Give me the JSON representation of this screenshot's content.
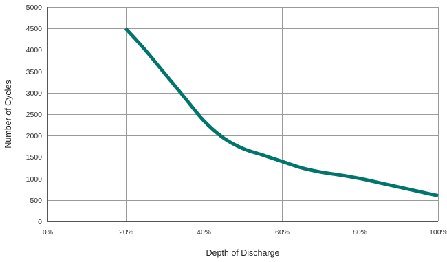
{
  "chart_data": {
    "type": "line",
    "title": "",
    "xlabel": "Depth of Discharge",
    "ylabel": "Number of Cycles",
    "xlim": [
      0,
      100
    ],
    "ylim": [
      0,
      5000
    ],
    "x_ticks": [
      0,
      20,
      40,
      60,
      80,
      100
    ],
    "x_tick_labels": [
      "0%",
      "20%",
      "40%",
      "60%",
      "80%",
      "100%"
    ],
    "y_ticks": [
      0,
      500,
      1000,
      1500,
      2000,
      2500,
      3000,
      3500,
      4000,
      4500,
      5000
    ],
    "y_tick_labels": [
      "0",
      "500",
      "1000",
      "1500",
      "2000",
      "2500",
      "3000",
      "3500",
      "4000",
      "4500",
      "5000"
    ],
    "grid": true,
    "legend": "none",
    "series": [
      {
        "color": "#00756b",
        "points": [
          {
            "x": 20,
            "y": 4500
          },
          {
            "x": 25,
            "y": 4000
          },
          {
            "x": 30,
            "y": 3450
          },
          {
            "x": 35,
            "y": 2900
          },
          {
            "x": 40,
            "y": 2350
          },
          {
            "x": 45,
            "y": 1950
          },
          {
            "x": 50,
            "y": 1700
          },
          {
            "x": 55,
            "y": 1550
          },
          {
            "x": 60,
            "y": 1400
          },
          {
            "x": 65,
            "y": 1250
          },
          {
            "x": 70,
            "y": 1150
          },
          {
            "x": 75,
            "y": 1080
          },
          {
            "x": 80,
            "y": 1000
          },
          {
            "x": 85,
            "y": 900
          },
          {
            "x": 90,
            "y": 800
          },
          {
            "x": 95,
            "y": 700
          },
          {
            "x": 100,
            "y": 600
          }
        ]
      }
    ]
  },
  "colors": {
    "line": "#00756b",
    "grid": "#9a9a9a",
    "axis": "#555555"
  }
}
